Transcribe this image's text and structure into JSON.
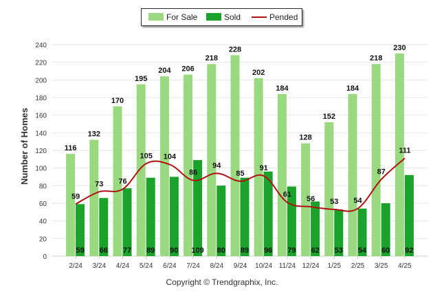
{
  "chart_data": {
    "type": "bar",
    "categories": [
      "2/24",
      "3/24",
      "4/24",
      "5/24",
      "6/24",
      "7/24",
      "8/24",
      "9/24",
      "10/24",
      "11/24",
      "12/24",
      "1/25",
      "2/25",
      "3/25",
      "4/25"
    ],
    "series": [
      {
        "name": "For Sale",
        "type": "bar",
        "color": "#9ad97f",
        "values": [
          116,
          132,
          170,
          195,
          204,
          206,
          218,
          228,
          202,
          184,
          128,
          152,
          184,
          218,
          230
        ]
      },
      {
        "name": "Sold",
        "type": "bar",
        "color": "#1aa22a",
        "values": [
          59,
          66,
          77,
          89,
          90,
          109,
          80,
          89,
          96,
          79,
          62,
          53,
          54,
          60,
          92
        ]
      },
      {
        "name": "Pended",
        "type": "line",
        "color": "#b01010",
        "values": [
          59,
          73,
          76,
          105,
          104,
          86,
          94,
          85,
          91,
          61,
          56,
          53,
          54,
          87,
          111
        ]
      }
    ],
    "ylabel": "Number of Homes",
    "xlabel": "",
    "ylim": [
      0,
      240
    ],
    "yticks": [
      0,
      20,
      40,
      60,
      80,
      100,
      120,
      140,
      160,
      180,
      200,
      220,
      240
    ],
    "grid": true,
    "legend": "top-center"
  },
  "legend": {
    "for_sale": "For Sale",
    "sold": "Sold",
    "pended": "Pended"
  },
  "footer": {
    "copyright": "Copyright © Trendgraphix, Inc."
  }
}
